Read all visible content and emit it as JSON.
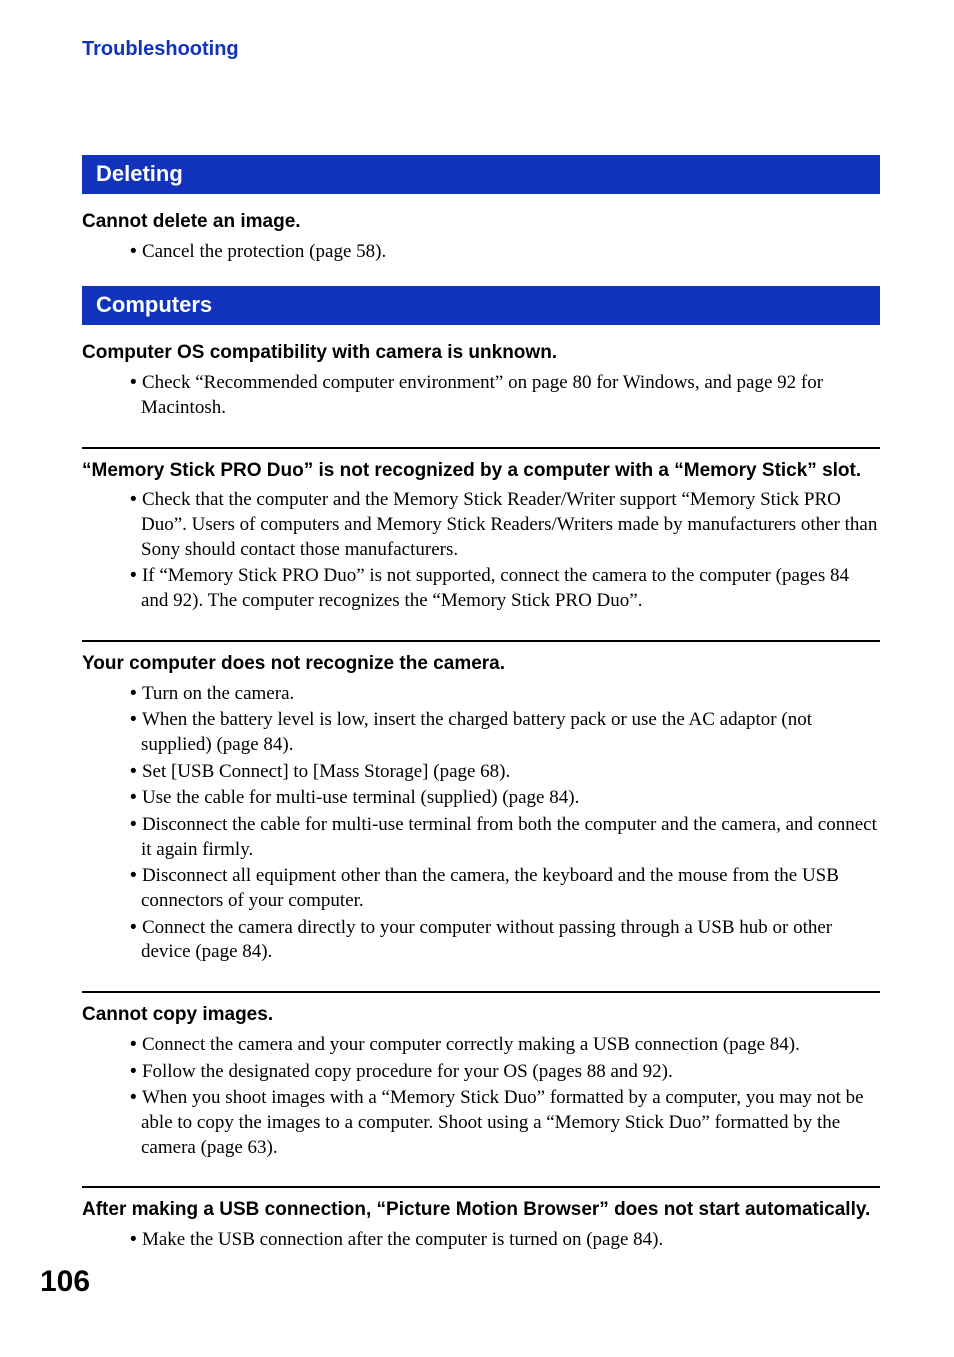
{
  "header": {
    "title": "Troubleshooting",
    "color": "#1133bb"
  },
  "sections": [
    {
      "heading": "Deleting",
      "bar_color": "#1133bb",
      "entries": [
        {
          "title": "Cannot delete an image.",
          "bullets": [
            "Cancel the protection (page 58)."
          ]
        }
      ]
    },
    {
      "heading": "Computers",
      "bar_color": "#1133bb",
      "entries": [
        {
          "title": "Computer OS compatibility with camera is unknown.",
          "bullets": [
            "Check “Recommended computer environment” on page 80 for Windows, and page 92 for Macintosh."
          ]
        },
        {
          "title": "“Memory Stick PRO Duo” is not recognized by a computer with a “Memory Stick” slot.",
          "bullets": [
            "Check that the computer and the Memory Stick Reader/Writer support “Memory Stick PRO Duo”. Users of computers and Memory Stick Readers/Writers made by manufacturers other than Sony should contact those manufacturers.",
            "If “Memory Stick PRO Duo” is not supported, connect the camera to the computer (pages 84 and 92). The computer recognizes the “Memory Stick PRO Duo”."
          ]
        },
        {
          "title": "Your computer does not recognize the camera.",
          "bullets": [
            "Turn on the camera.",
            "When the battery level is low, insert the charged battery pack or use the AC adaptor (not supplied) (page 84).",
            "Set [USB Connect] to [Mass Storage] (page 68).",
            "Use the cable for multi-use terminal (supplied) (page 84).",
            "Disconnect the cable for multi-use terminal from both the computer and the camera, and connect it again firmly.",
            "Disconnect all equipment other than the camera, the keyboard and the mouse from the USB connectors of your computer.",
            "Connect the camera directly to your computer without passing through a USB hub or other device (page 84)."
          ]
        },
        {
          "title": "Cannot copy images.",
          "bullets": [
            "Connect the camera and your computer correctly making a USB connection (page 84).",
            "Follow the designated copy procedure for your OS (pages 88 and 92).",
            "When you shoot images with a “Memory Stick Duo” formatted by a computer, you may not be able to copy the images to a computer. Shoot using a “Memory Stick Duo” formatted by the camera (page 63)."
          ]
        },
        {
          "title": "After making a USB connection, “Picture Motion Browser” does not start automatically.",
          "bullets": [
            "Make the USB connection after the computer is turned on (page 84)."
          ]
        }
      ]
    }
  ],
  "page_number": "106"
}
